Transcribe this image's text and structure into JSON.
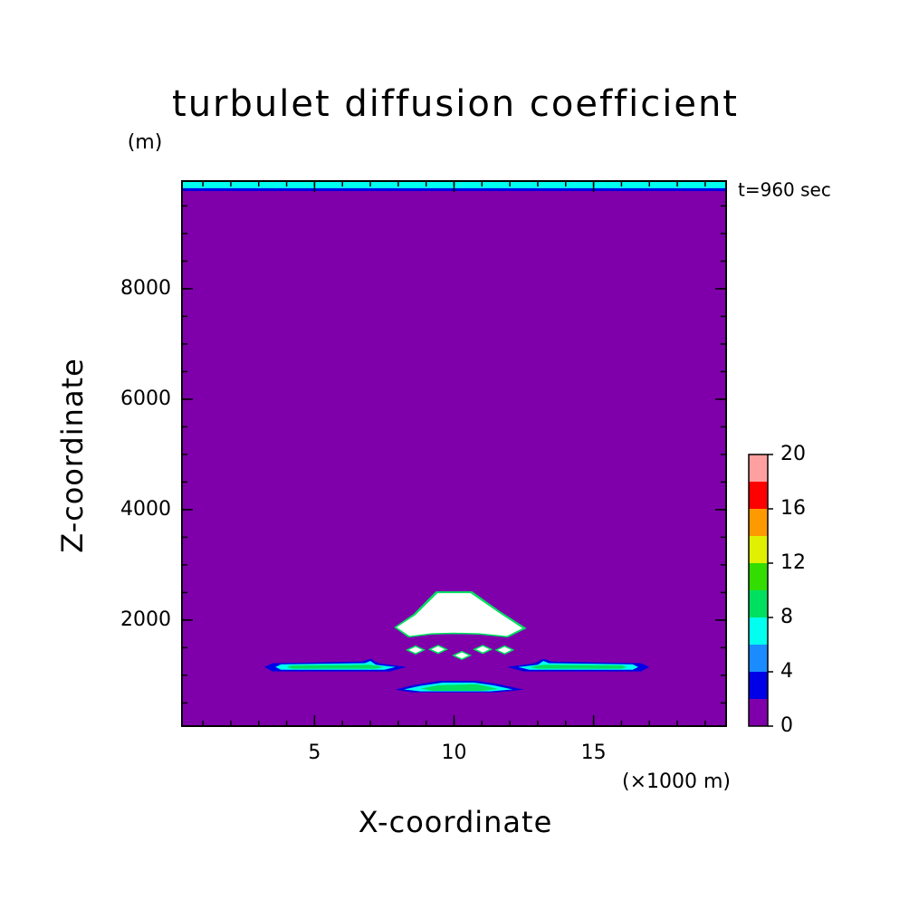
{
  "chart_data": {
    "type": "contour",
    "title": "turbulet diffusion coefficient",
    "x_label": "X-coordinate",
    "y_label": "Z-coordinate",
    "x_unit": "(×1000 m)",
    "y_unit": "(m)",
    "annotation": "t=960 sec",
    "xlim": [
      0.25,
      19.75
    ],
    "ylim": [
      80,
      9950
    ],
    "xticks": [
      5,
      10,
      15
    ],
    "yticks": [
      2000,
      4000,
      6000,
      8000
    ],
    "xminor": [
      1,
      2,
      3,
      4,
      5,
      6,
      7,
      8,
      9,
      10,
      11,
      12,
      13,
      14,
      15,
      16,
      17,
      18,
      19
    ],
    "yminor": [
      500,
      1000,
      1500,
      2000,
      2500,
      3000,
      3500,
      4000,
      4500,
      5000,
      5500,
      6000,
      6500,
      7000,
      7500,
      8000,
      8500,
      9000,
      9500
    ],
    "levels": [
      0,
      2,
      4,
      6,
      8,
      10,
      12,
      14,
      16,
      18,
      20
    ],
    "colors": [
      "#7f00aa",
      "#0000e6",
      "#1a8cff",
      "#00ffee",
      "#00e060",
      "#33dd00",
      "#e0f000",
      "#ff9900",
      "#ff0000",
      "#ffa0a0"
    ],
    "over_color": "#ffffff",
    "colorbar_ticks": [
      0,
      4,
      8,
      12,
      16,
      20
    ],
    "contours": [
      {
        "level": 2,
        "x": [
          0.25,
          19.75,
          19.75,
          0.25
        ],
        "z": [
          9770,
          9770,
          9950,
          9950
        ]
      },
      {
        "level": 6,
        "x": [
          0.25,
          19.75,
          19.75,
          0.25
        ],
        "z": [
          9820,
          9820,
          9950,
          9950
        ]
      },
      {
        "level": 2,
        "x": [
          3.2,
          3.5,
          6.7,
          7.0,
          7.3,
          8.3,
          7.7,
          3.5
        ],
        "z": [
          1150,
          1220,
          1250,
          1300,
          1220,
          1150,
          1070,
          1070
        ]
      },
      {
        "level": 6,
        "x": [
          3.6,
          3.8,
          6.8,
          7.0,
          7.2,
          7.9,
          7.5,
          3.8
        ],
        "z": [
          1150,
          1200,
          1220,
          1260,
          1190,
          1150,
          1100,
          1100
        ]
      },
      {
        "level": 8,
        "x": [
          4.0,
          4.2,
          7.0,
          7.5,
          7.2,
          4.2
        ],
        "z": [
          1150,
          1180,
          1190,
          1150,
          1120,
          1120
        ]
      },
      {
        "level": 2,
        "x": [
          17.0,
          16.7,
          13.5,
          13.2,
          12.9,
          11.9,
          12.5,
          16.7
        ],
        "z": [
          1150,
          1220,
          1250,
          1300,
          1220,
          1150,
          1070,
          1070
        ]
      },
      {
        "level": 6,
        "x": [
          16.6,
          16.4,
          13.4,
          13.2,
          13.0,
          12.3,
          12.7,
          16.4
        ],
        "z": [
          1150,
          1200,
          1220,
          1260,
          1190,
          1150,
          1100,
          1100
        ]
      },
      {
        "level": 8,
        "x": [
          16.2,
          16.0,
          13.2,
          12.7,
          13.0,
          16.0
        ],
        "z": [
          1150,
          1180,
          1190,
          1150,
          1120,
          1120
        ]
      },
      {
        "level": 2,
        "x": [
          7.9,
          8.5,
          9.5,
          10.8,
          11.6,
          12.5,
          11.5,
          8.5
        ],
        "z": [
          740,
          820,
          900,
          900,
          840,
          740,
          690,
          690
        ]
      },
      {
        "level": 6,
        "x": [
          8.2,
          8.8,
          9.6,
          10.7,
          11.4,
          12.1,
          11.3,
          8.8
        ],
        "z": [
          745,
          810,
          870,
          870,
          820,
          745,
          710,
          710
        ]
      },
      {
        "level": 8,
        "x": [
          8.8,
          9.4,
          10.8,
          11.2,
          11.6,
          11.0,
          9.2
        ],
        "z": [
          760,
          820,
          840,
          800,
          750,
          720,
          720
        ]
      },
      {
        "level": 8,
        "x": [
          7.85,
          8.55,
          9.35,
          10.65,
          11.65,
          12.6,
          11.95,
          10.9,
          10.0,
          9.15,
          8.35
        ],
        "z": [
          1870,
          2110,
          2520,
          2520,
          2160,
          1850,
          1690,
          1740,
          1750,
          1740,
          1690
        ]
      },
      {
        "level": 20,
        "x": [
          7.9,
          8.6,
          9.4,
          10.6,
          11.6,
          12.5,
          11.9,
          10.9,
          10.0,
          9.2,
          8.4
        ],
        "z": [
          1870,
          2100,
          2500,
          2500,
          2150,
          1850,
          1700,
          1750,
          1760,
          1750,
          1700
        ]
      },
      {
        "level": 20,
        "x": [
          8.32,
          8.62,
          8.92,
          8.62
        ],
        "z": [
          1459,
          1529,
          1459,
          1389
        ]
      },
      {
        "level": 20,
        "x": [
          9.13,
          9.43,
          9.73,
          9.43
        ],
        "z": [
          1470,
          1540,
          1470,
          1400
        ]
      },
      {
        "level": 20,
        "x": [
          9.98,
          10.28,
          10.58,
          10.28
        ],
        "z": [
          1360,
          1430,
          1360,
          1290
        ]
      },
      {
        "level": 20,
        "x": [
          10.73,
          11.03,
          11.33,
          11.03
        ],
        "z": [
          1470,
          1540,
          1470,
          1400
        ]
      },
      {
        "level": 20,
        "x": [
          11.51,
          11.81,
          12.11,
          11.81
        ],
        "z": [
          1459,
          1529,
          1459,
          1389
        ]
      }
    ]
  }
}
